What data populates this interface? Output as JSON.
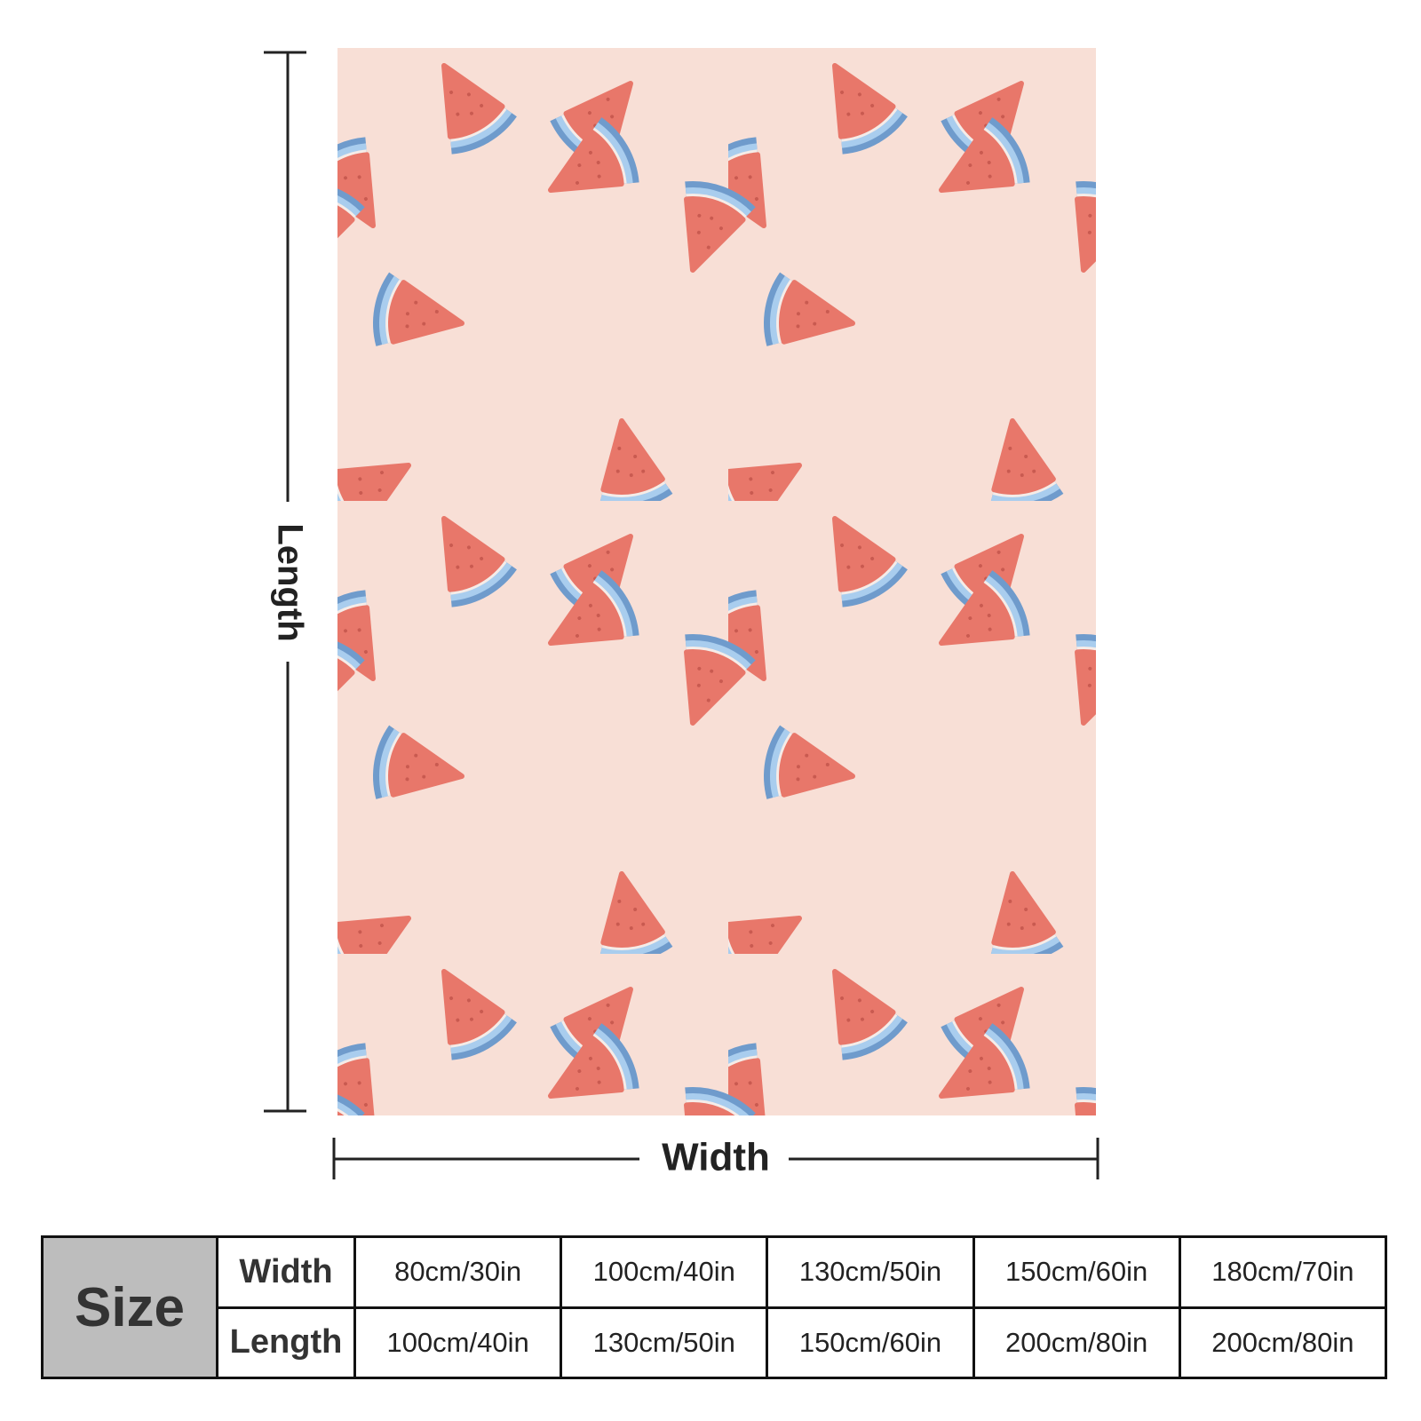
{
  "dimensions": {
    "length": "Length",
    "width": "Width"
  },
  "table": {
    "corner": "Size",
    "rows": [
      {
        "header": "Width",
        "cells": [
          "80cm/30in",
          "100cm/40in",
          "130cm/50in",
          "150cm/60in",
          "180cm/70in"
        ]
      },
      {
        "header": "Length",
        "cells": [
          "100cm/40in",
          "130cm/50in",
          "150cm/60in",
          "200cm/80in",
          "200cm/80in"
        ]
      }
    ]
  }
}
